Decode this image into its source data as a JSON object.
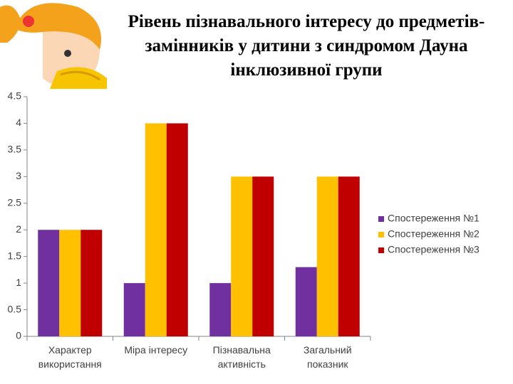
{
  "chart_data": {
    "type": "bar",
    "title": "Рівень пізнавального інтересу до предметів-замінників у дитини з синдромом Дауна інклюзивної групи",
    "categories": [
      "Характер використання",
      "Міра інтересу",
      "Пізнавальна активність",
      "Загальний показник"
    ],
    "series": [
      {
        "name": "Спостереження №1",
        "color": "#7030a0",
        "values": [
          2,
          1,
          1,
          1.3
        ]
      },
      {
        "name": "Спостереження №2",
        "color": "#ffc000",
        "values": [
          2,
          4,
          3,
          3
        ]
      },
      {
        "name": "Спостереження №3",
        "color": "#c00000",
        "values": [
          2,
          4,
          3,
          3
        ]
      }
    ],
    "ylim": [
      0,
      4.5
    ],
    "yticks": [
      0,
      0.5,
      1,
      1.5,
      2,
      2.5,
      3,
      3.5,
      4,
      4.5
    ],
    "grid": false,
    "legend": "right"
  }
}
